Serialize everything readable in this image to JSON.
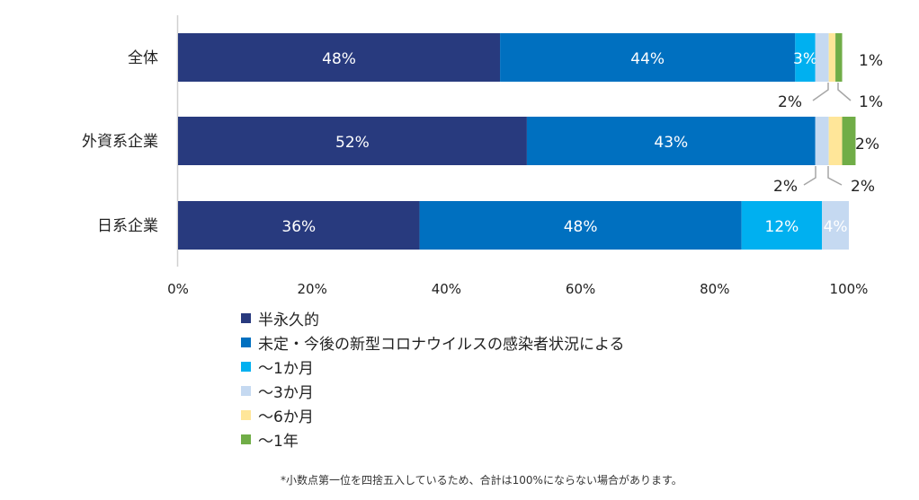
{
  "chart_data": {
    "type": "bar",
    "orientation": "horizontal",
    "stacked": true,
    "categories": [
      "全体",
      "外資系企業",
      "日系企業"
    ],
    "series": [
      {
        "name": "半永久的",
        "color": "#283a7e",
        "values": [
          48,
          52,
          36
        ]
      },
      {
        "name": "未定・今後の新型コロナウイルスの感染者状況による",
        "color": "#0070c0",
        "values": [
          44,
          43,
          48
        ]
      },
      {
        "name": "〜1か月",
        "color": "#00b0f0",
        "values": [
          3,
          0,
          12
        ]
      },
      {
        "name": "〜3か月",
        "color": "#c5d9f1",
        "values": [
          2,
          2,
          4
        ]
      },
      {
        "name": "〜6か月",
        "color": "#ffe699",
        "values": [
          1,
          2,
          0
        ]
      },
      {
        "name": "〜1年",
        "color": "#70ad47",
        "values": [
          1,
          2,
          0
        ]
      }
    ],
    "data_labels": [
      [
        "48%",
        "44%",
        "3%",
        "2%",
        "1%",
        "1%"
      ],
      [
        "52%",
        "43%",
        "",
        "2%",
        "2%",
        "2%"
      ],
      [
        "36%",
        "48%",
        "12%",
        "4%",
        "",
        ""
      ]
    ],
    "xlim": [
      0,
      100
    ],
    "x_ticks": [
      "0%",
      "20%",
      "40%",
      "60%",
      "80%",
      "100%"
    ],
    "legend_position": "bottom",
    "grid": false
  },
  "footnote": "*小数点第一位を四捨五入しているため、合計は100%にならない場合があります。"
}
